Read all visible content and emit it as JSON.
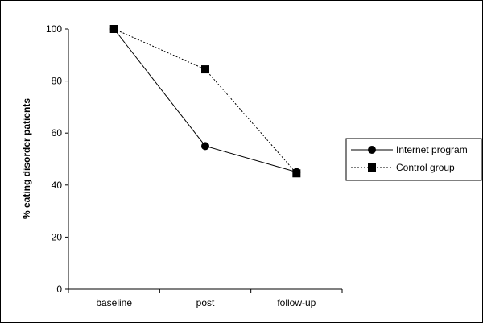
{
  "chart_data": {
    "type": "line",
    "ylabel": "% eating disorder patients",
    "xlabel": "",
    "categories": [
      "baseline",
      "post",
      "follow-up"
    ],
    "ylim": [
      0,
      100
    ],
    "yticks": [
      0,
      20,
      40,
      60,
      80,
      100
    ],
    "grid": false,
    "legend_position": "right",
    "series": [
      {
        "name": "Internet program",
        "values": [
          100,
          55,
          45
        ],
        "marker": "circle",
        "line_style": "solid",
        "color": "#000000"
      },
      {
        "name": "Control group",
        "values": [
          100,
          84.5,
          44.5
        ],
        "marker": "square",
        "line_style": "dotted",
        "color": "#000000"
      }
    ]
  }
}
